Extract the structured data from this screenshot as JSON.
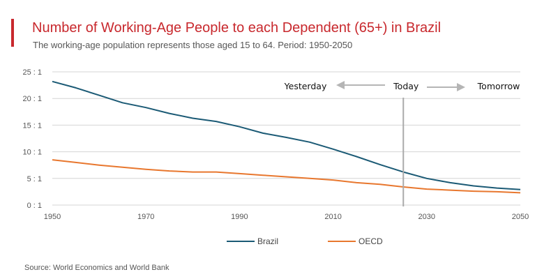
{
  "colors": {
    "accent": "#c8282d",
    "brazil": "#1b5a75",
    "oecd": "#e8772e",
    "grid": "#d4d4d4",
    "today_line": "#aaaaaa",
    "arrow": "#b5b5b5"
  },
  "header": {
    "title": "Number of Working-Age People to each Dependent (65+) in Brazil",
    "subtitle": "The working-age population represents those aged 15 to 64. Period: 1950-2050"
  },
  "footer": {
    "source": "Source: World Economics and World Bank"
  },
  "chart_data": {
    "type": "line",
    "title": "Number of Working-Age People to each Dependent (65+) in Brazil",
    "subtitle": "The working-age population represents those aged 15 to 64. Period: 1950-2050",
    "xlim": [
      1950,
      2050
    ],
    "ylim": [
      0,
      25
    ],
    "x_ticks": [
      1950,
      1970,
      1990,
      2010,
      2030,
      2050
    ],
    "y_ticks": [
      0,
      5,
      10,
      15,
      20,
      25
    ],
    "y_tick_labels": [
      "0 : 1",
      "5 : 1",
      "10 : 1",
      "15 : 1",
      "20 : 1",
      "25 : 1"
    ],
    "grid": true,
    "legend_position": "bottom",
    "x": [
      1950,
      1955,
      1960,
      1965,
      1970,
      1975,
      1980,
      1985,
      1990,
      1995,
      2000,
      2005,
      2010,
      2015,
      2020,
      2025,
      2030,
      2035,
      2040,
      2045,
      2050
    ],
    "series": [
      {
        "name": "Brazil",
        "color": "#1b5a75",
        "values": [
          23.2,
          22.0,
          20.6,
          19.2,
          18.3,
          17.2,
          16.3,
          15.7,
          14.7,
          13.5,
          12.7,
          11.8,
          10.5,
          9.1,
          7.6,
          6.2,
          5.0,
          4.2,
          3.6,
          3.2,
          2.9
        ]
      },
      {
        "name": "OECD",
        "color": "#e8772e",
        "values": [
          8.5,
          8.0,
          7.5,
          7.1,
          6.7,
          6.4,
          6.2,
          6.2,
          5.9,
          5.6,
          5.3,
          5.0,
          4.7,
          4.2,
          3.9,
          3.4,
          3.0,
          2.8,
          2.6,
          2.5,
          2.3
        ]
      }
    ],
    "annotations": {
      "today_year": 2025,
      "yesterday_label": "Yesterday",
      "today_label": "Today",
      "tomorrow_label": "Tomorrow"
    }
  }
}
